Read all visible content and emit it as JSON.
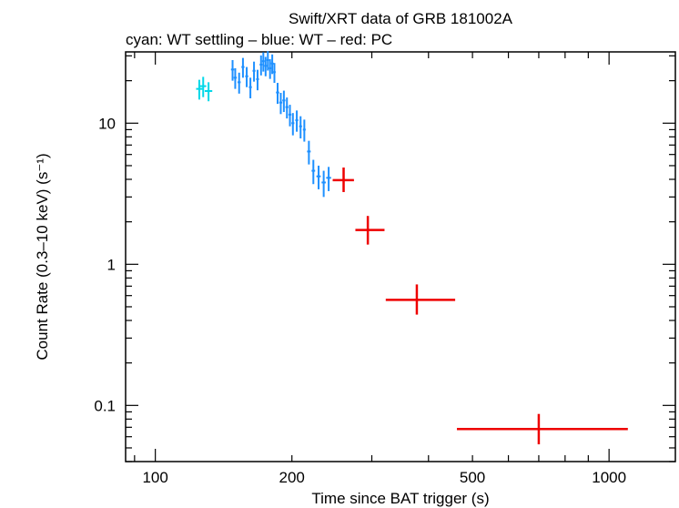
{
  "chart_data": {
    "type": "scatter",
    "title": "Swift/XRT data of GRB 181002A",
    "subtitle": "cyan: WT settling – blue: WT – red: PC",
    "xlabel": "Time since BAT trigger (s)",
    "ylabel": "Count Rate (0.3–10 keV) (s⁻¹)",
    "xscale": "log",
    "yscale": "log",
    "xlim": [
      86,
      1400
    ],
    "ylim": [
      0.04,
      32
    ],
    "x_ticks": [
      {
        "value": 100,
        "label": "100"
      },
      {
        "value": 200,
        "label": "200"
      },
      {
        "value": 500,
        "label": "500"
      },
      {
        "value": 1000,
        "label": "1000"
      }
    ],
    "y_ticks": [
      {
        "value": 0.1,
        "label": "0.1"
      },
      {
        "value": 1,
        "label": "1"
      },
      {
        "value": 10,
        "label": "10"
      }
    ],
    "series": [
      {
        "name": "WT settling",
        "color": "#00d8e8",
        "points": [
          {
            "x": 125,
            "xerr": 2,
            "y": 17.5,
            "yerr": 2.8
          },
          {
            "x": 127.5,
            "xerr": 2,
            "y": 18.3,
            "yerr": 3.0
          },
          {
            "x": 131,
            "xerr": 2.5,
            "y": 16.9,
            "yerr": 2.6
          }
        ]
      },
      {
        "name": "WT",
        "color": "#1e90ff",
        "points": [
          {
            "x": 148,
            "xerr": 1.2,
            "y": 24.0,
            "yerr": 4.0
          },
          {
            "x": 150,
            "xerr": 1.2,
            "y": 21.0,
            "yerr": 3.5
          },
          {
            "x": 153,
            "xerr": 1.2,
            "y": 19.5,
            "yerr": 3.3
          },
          {
            "x": 156,
            "xerr": 1.2,
            "y": 25.0,
            "yerr": 4.0
          },
          {
            "x": 159,
            "xerr": 1.2,
            "y": 21.5,
            "yerr": 3.5
          },
          {
            "x": 162,
            "xerr": 1.2,
            "y": 18.0,
            "yerr": 3.0
          },
          {
            "x": 165,
            "xerr": 1.2,
            "y": 23.5,
            "yerr": 3.8
          },
          {
            "x": 168,
            "xerr": 1.2,
            "y": 20.5,
            "yerr": 3.4
          },
          {
            "x": 171,
            "xerr": 1.2,
            "y": 26.0,
            "yerr": 4.2
          },
          {
            "x": 173,
            "xerr": 1.2,
            "y": 27.5,
            "yerr": 4.3
          },
          {
            "x": 175,
            "xerr": 1.2,
            "y": 25.5,
            "yerr": 4.0
          },
          {
            "x": 177,
            "xerr": 1.2,
            "y": 28.0,
            "yerr": 4.4
          },
          {
            "x": 179,
            "xerr": 1.2,
            "y": 24.5,
            "yerr": 3.9
          },
          {
            "x": 181,
            "xerr": 1.2,
            "y": 26.5,
            "yerr": 4.2
          },
          {
            "x": 183,
            "xerr": 1.2,
            "y": 23.0,
            "yerr": 3.7
          },
          {
            "x": 186,
            "xerr": 1.5,
            "y": 16.5,
            "yerr": 2.8
          },
          {
            "x": 189,
            "xerr": 1.5,
            "y": 14.0,
            "yerr": 2.4
          },
          {
            "x": 192,
            "xerr": 1.5,
            "y": 14.5,
            "yerr": 2.5
          },
          {
            "x": 195,
            "xerr": 1.5,
            "y": 13.0,
            "yerr": 2.2
          },
          {
            "x": 198,
            "xerr": 1.5,
            "y": 11.5,
            "yerr": 2.0
          },
          {
            "x": 201,
            "xerr": 1.5,
            "y": 10.0,
            "yerr": 1.8
          },
          {
            "x": 205,
            "xerr": 1.5,
            "y": 10.5,
            "yerr": 1.8
          },
          {
            "x": 209,
            "xerr": 1.5,
            "y": 9.5,
            "yerr": 1.7
          },
          {
            "x": 213,
            "xerr": 1.5,
            "y": 9.0,
            "yerr": 1.6
          },
          {
            "x": 218,
            "xerr": 2,
            "y": 6.3,
            "yerr": 1.2
          },
          {
            "x": 223,
            "xerr": 2,
            "y": 4.6,
            "yerr": 0.9
          },
          {
            "x": 229,
            "xerr": 2.5,
            "y": 4.2,
            "yerr": 0.8
          },
          {
            "x": 235,
            "xerr": 2.5,
            "y": 3.8,
            "yerr": 0.8
          },
          {
            "x": 241,
            "xerr": 3,
            "y": 4.1,
            "yerr": 0.8
          }
        ]
      },
      {
        "name": "PC",
        "color": "#ee0000",
        "points": [
          {
            "x": 260,
            "xlo": 246,
            "xhi": 274,
            "y": 3.95,
            "ylo": 3.25,
            "yhi": 4.85
          },
          {
            "x": 294,
            "xlo": 276,
            "xhi": 320,
            "y": 1.75,
            "ylo": 1.38,
            "yhi": 2.2
          },
          {
            "x": 377,
            "xlo": 322,
            "xhi": 458,
            "y": 0.56,
            "ylo": 0.44,
            "yhi": 0.72
          },
          {
            "x": 700,
            "xlo": 462,
            "xhi": 1100,
            "y": 0.068,
            "ylo": 0.053,
            "yhi": 0.087
          }
        ]
      }
    ]
  }
}
